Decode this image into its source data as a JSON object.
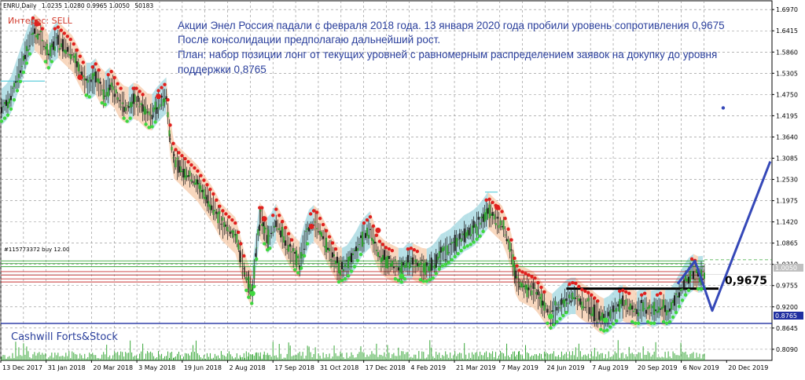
{
  "chart_data": {
    "type": "candlestick",
    "header": {
      "symbol": "ENRU,Daily",
      "ohlc": "1.0235 1.0280 0.9965 1.0050",
      "volume": "50183",
      "indicator": "Интерес: SELL"
    },
    "order_label": "#115773372 buy 12.00",
    "annotation_lines": [
      "Акции Энел Россия падали с февраля 2018 года. 13 января 2020 года пробили уровень сопротивления 0,9675",
      "После консолидации предполагаю дальнейший рост.",
      "План: набор позиции лонг от текущих уровней с равномерным распределением заявок на докупку до уровня",
      "поддержки 0,8765"
    ],
    "watermark": "Cashwill Forts&Stock",
    "resistance_label": "0,9675",
    "resistance_level": 0.9675,
    "support_level": 0.8765,
    "current_price": 1.005,
    "current_price_label": "1.0050",
    "support_price_label": "0.8765",
    "ylim": [
      0.78,
      1.72
    ],
    "y_ticks": [
      "1.6970",
      "1.6415",
      "1.5860",
      "1.5305",
      "1.4750",
      "1.4195",
      "1.3640",
      "1.3085",
      "1.2530",
      "1.1975",
      "1.1420",
      "1.0865",
      "1.0310",
      "0.9755",
      "0.9200",
      "0.8645",
      "0.8090"
    ],
    "x_ticks": [
      "13 Dec 2017",
      "31 Jan 2018",
      "20 Mar 2018",
      "3 May 2018",
      "19 Jun 2018",
      "2 Aug 2018",
      "17 Sep 2018",
      "31 Oct 2018",
      "17 Dec 2018",
      "4 Feb 2019",
      "21 Mar 2019",
      "7 May 2019",
      "24 Jun 2019",
      "7 Aug 2019",
      "20 Sep 2019",
      "6 Nov 2019",
      "20 Dec 2019"
    ],
    "price_path": [
      [
        0,
        1.44
      ],
      [
        10,
        1.46
      ],
      [
        20,
        1.52
      ],
      [
        30,
        1.58
      ],
      [
        40,
        1.64
      ],
      [
        50,
        1.62
      ],
      [
        60,
        1.58
      ],
      [
        70,
        1.62
      ],
      [
        80,
        1.6
      ],
      [
        90,
        1.58
      ],
      [
        100,
        1.54
      ],
      [
        110,
        1.5
      ],
      [
        120,
        1.52
      ],
      [
        130,
        1.48
      ],
      [
        140,
        1.5
      ],
      [
        150,
        1.46
      ],
      [
        160,
        1.44
      ],
      [
        170,
        1.46
      ],
      [
        180,
        1.44
      ],
      [
        190,
        1.42
      ],
      [
        200,
        1.45
      ],
      [
        210,
        1.47
      ],
      [
        215,
        1.36
      ],
      [
        220,
        1.3
      ],
      [
        230,
        1.28
      ],
      [
        240,
        1.26
      ],
      [
        250,
        1.24
      ],
      [
        260,
        1.21
      ],
      [
        270,
        1.18
      ],
      [
        280,
        1.14
      ],
      [
        290,
        1.12
      ],
      [
        300,
        1.1
      ],
      [
        305,
        1.05
      ],
      [
        310,
        1.01
      ],
      [
        315,
        0.98
      ],
      [
        320,
        0.96
      ],
      [
        325,
        1.08
      ],
      [
        330,
        1.16
      ],
      [
        335,
        1.12
      ],
      [
        340,
        1.1
      ],
      [
        350,
        1.14
      ],
      [
        360,
        1.1
      ],
      [
        370,
        1.06
      ],
      [
        380,
        1.04
      ],
      [
        390,
        1.12
      ],
      [
        400,
        1.14
      ],
      [
        410,
        1.1
      ],
      [
        420,
        1.06
      ],
      [
        430,
        1.02
      ],
      [
        440,
        1.03
      ],
      [
        450,
        1.06
      ],
      [
        460,
        1.1
      ],
      [
        470,
        1.12
      ],
      [
        480,
        1.06
      ],
      [
        490,
        1.04
      ],
      [
        500,
        1.03
      ],
      [
        510,
        1.02
      ],
      [
        520,
        1.04
      ],
      [
        530,
        1.03
      ],
      [
        540,
        1.02
      ],
      [
        550,
        1.03
      ],
      [
        560,
        1.06
      ],
      [
        570,
        1.07
      ],
      [
        580,
        1.09
      ],
      [
        590,
        1.11
      ],
      [
        600,
        1.12
      ],
      [
        610,
        1.14
      ],
      [
        620,
        1.17
      ],
      [
        630,
        1.15
      ],
      [
        640,
        1.13
      ],
      [
        650,
        1.06
      ],
      [
        655,
        1.0
      ],
      [
        660,
        0.98
      ],
      [
        670,
        0.97
      ],
      [
        680,
        0.96
      ],
      [
        690,
        0.93
      ],
      [
        700,
        0.9
      ],
      [
        710,
        0.92
      ],
      [
        720,
        0.94
      ],
      [
        730,
        0.95
      ],
      [
        740,
        0.93
      ],
      [
        750,
        0.92
      ],
      [
        760,
        0.9
      ],
      [
        770,
        0.89
      ],
      [
        780,
        0.91
      ],
      [
        790,
        0.93
      ],
      [
        800,
        0.92
      ],
      [
        810,
        0.91
      ],
      [
        820,
        0.92
      ],
      [
        830,
        0.91
      ],
      [
        840,
        0.92
      ],
      [
        850,
        0.91
      ],
      [
        860,
        0.94
      ],
      [
        870,
        0.98
      ],
      [
        880,
        1.01
      ],
      [
        890,
        1.0
      ],
      [
        896,
        1.005
      ]
    ],
    "forecast_path": [
      [
        862,
        0.98
      ],
      [
        884,
        1.04
      ],
      [
        906,
        0.91
      ],
      [
        980,
        1.3
      ]
    ],
    "forecast_point": [
      920,
      1.44
    ]
  }
}
